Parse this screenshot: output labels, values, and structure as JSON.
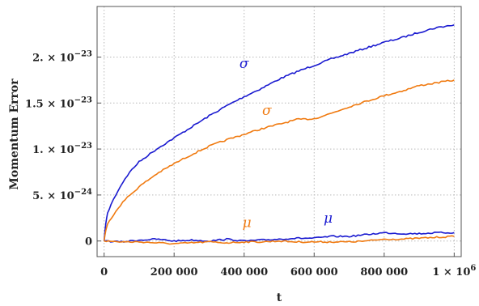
{
  "chart_data": {
    "type": "line",
    "xlabel": "t",
    "ylabel": "Momentum Error",
    "xlim": [
      -20000,
      1020000
    ],
    "ylim": [
      -1.7e-24,
      2.55e-23
    ],
    "grid": true,
    "x_ticks": [
      0,
      200000,
      400000,
      600000,
      800000,
      1000000
    ],
    "x_tick_labels": [
      "0",
      "200 000",
      "400 000",
      "600 000",
      "800 000",
      "1 × 10"
    ],
    "x_tick_last_exp": "6",
    "y_ticks": [
      0,
      5e-24,
      1e-23,
      1.5e-23,
      2e-23
    ],
    "y_tick_mantissas": [
      "0",
      "5. × 10",
      "1. × 10",
      "1.5 × 10",
      "2. × 10"
    ],
    "y_tick_exponents": [
      "",
      "−24",
      "−23",
      "−23",
      "−23"
    ],
    "colors": {
      "blue": "#1a1ad0",
      "orange": "#f07a10"
    },
    "series": [
      {
        "name": "σ",
        "color": "#1a1ad0",
        "x": [
          0,
          5000,
          10000,
          20000,
          40000,
          60000,
          80000,
          100000,
          150000,
          200000,
          250000,
          300000,
          350000,
          400000,
          450000,
          500000,
          550000,
          600000,
          650000,
          700000,
          750000,
          800000,
          850000,
          900000,
          950000,
          1000000
        ],
        "y": [
          0,
          2e-24,
          3e-24,
          4e-24,
          5.5e-24,
          6.8e-24,
          7.8e-24,
          8.6e-24,
          1e-23,
          1.12e-23,
          1.24e-23,
          1.36e-23,
          1.47e-23,
          1.57e-23,
          1.66e-23,
          1.76e-23,
          1.84e-23,
          1.91e-23,
          1.98e-23,
          2.04e-23,
          2.1e-23,
          2.16e-23,
          2.21e-23,
          2.27e-23,
          2.32e-23,
          2.35e-23
        ]
      },
      {
        "name": "σ",
        "color": "#f07a10",
        "x": [
          0,
          5000,
          10000,
          20000,
          40000,
          60000,
          80000,
          100000,
          150000,
          200000,
          250000,
          300000,
          350000,
          400000,
          450000,
          500000,
          550000,
          600000,
          650000,
          700000,
          750000,
          800000,
          850000,
          900000,
          950000,
          1000000
        ],
        "y": [
          0,
          1.2e-24,
          1.8e-24,
          2.5e-24,
          3.6e-24,
          4.5e-24,
          5.2e-24,
          5.9e-24,
          7.3e-24,
          8.4e-24,
          9.4e-24,
          1.03e-23,
          1.1e-23,
          1.16e-23,
          1.22e-23,
          1.27e-23,
          1.32e-23,
          1.33e-23,
          1.39e-23,
          1.46e-23,
          1.52e-23,
          1.58e-23,
          1.63e-23,
          1.69e-23,
          1.72e-23,
          1.75e-23
        ]
      },
      {
        "name": "μ",
        "color": "#1a1ad0",
        "x": [
          0,
          50000,
          100000,
          150000,
          200000,
          250000,
          300000,
          350000,
          400000,
          450000,
          500000,
          550000,
          600000,
          650000,
          700000,
          750000,
          800000,
          850000,
          900000,
          950000,
          1000000
        ],
        "y": [
          0,
          -1e-25,
          1e-25,
          2e-25,
          0,
          1e-25,
          0,
          2e-25,
          0,
          1e-25,
          2e-25,
          3e-25,
          3e-25,
          5e-25,
          5e-25,
          7e-25,
          9e-25,
          8e-25,
          8e-25,
          9e-25,
          9e-25
        ]
      },
      {
        "name": "μ",
        "color": "#f07a10",
        "x": [
          0,
          50000,
          100000,
          150000,
          200000,
          250000,
          300000,
          350000,
          400000,
          450000,
          500000,
          550000,
          600000,
          650000,
          700000,
          750000,
          800000,
          850000,
          900000,
          950000,
          1000000
        ],
        "y": [
          0,
          -1e-25,
          -1e-25,
          -2e-25,
          -3e-25,
          -2e-25,
          -1e-25,
          -2e-25,
          -1e-25,
          -1e-25,
          0,
          -1e-25,
          -1e-25,
          -1e-25,
          -1e-25,
          0,
          2e-25,
          2e-25,
          3e-25,
          4e-25,
          5e-25
        ]
      }
    ],
    "annotations": [
      {
        "text": "σ",
        "color": "#1a1ad0",
        "x": 400000,
        "y": 1.88e-23
      },
      {
        "text": "σ",
        "color": "#f07a10",
        "x": 465000,
        "y": 1.37e-23
      },
      {
        "text": "μ",
        "color": "#f07a10",
        "x": 408000,
        "y": 1.5e-24
      },
      {
        "text": "μ",
        "color": "#1a1ad0",
        "x": 640000,
        "y": 2e-24
      }
    ]
  }
}
